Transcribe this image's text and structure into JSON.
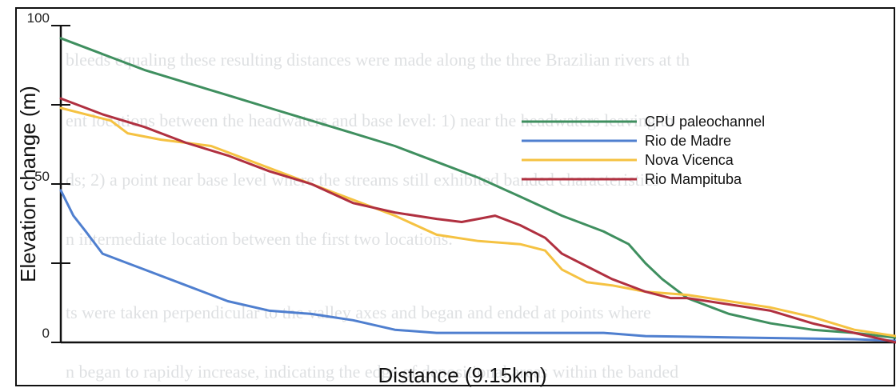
{
  "background_text": [
    "bleeds equaling these resulting distances were made along the three Brazilian rivers at th",
    "ent locations between the headwaters and base level: 1) near the headwaters leaving th",
    "ds; 2) a point near base level where the streams still exhibited banded characteristics",
    "n intermediate location between the first two locations.",
    "ts were taken perpendicular to the valley axes and began and ended at points where",
    "n began to rapidly increase, indicating the edge of depositional areas within the banded"
  ],
  "chart_data": {
    "type": "line",
    "title": "",
    "xlabel": "Distance (9.15km)",
    "ylabel": "Elevation change (m)",
    "xlim": [
      0,
      100
    ],
    "ylim": [
      0,
      100
    ],
    "yticks": [
      {
        "value": 0,
        "label": "0"
      },
      {
        "value": 25,
        "label": ""
      },
      {
        "value": 50,
        "label": "50"
      },
      {
        "value": 75,
        "label": ""
      },
      {
        "value": 100,
        "label": "100"
      }
    ],
    "legend_position": "right",
    "series": [
      {
        "name": "CPU paleochannel",
        "color": "#3f8f5f",
        "x": [
          0,
          5,
          10,
          15,
          20,
          25,
          30,
          35,
          40,
          45,
          50,
          55,
          60,
          62,
          65,
          68,
          70,
          72,
          75,
          80,
          85,
          90,
          95,
          100
        ],
        "y": [
          96,
          91,
          86,
          82,
          78,
          74,
          70,
          66,
          62,
          57,
          52,
          46,
          40,
          38,
          35,
          31,
          25,
          20,
          14,
          9,
          6,
          4,
          3,
          1.5
        ]
      },
      {
        "name": "Rio de Madre",
        "color": "#4f7fcf",
        "x": [
          0,
          1.5,
          3,
          5,
          8,
          10,
          15,
          20,
          25,
          30,
          35,
          40,
          45,
          50,
          55,
          60,
          65,
          70,
          75,
          80,
          85,
          90,
          95,
          100
        ],
        "y": [
          48,
          40,
          35,
          28,
          25,
          23,
          18,
          13,
          10,
          9,
          7,
          4,
          3,
          3,
          3,
          3,
          3,
          2,
          1.8,
          1.6,
          1.4,
          1.2,
          1,
          0.5
        ]
      },
      {
        "name": "Nova Vicenca",
        "color": "#f5c242",
        "x": [
          0,
          3,
          6,
          8,
          10,
          12,
          15,
          18,
          20,
          25,
          30,
          35,
          40,
          45,
          50,
          55,
          58,
          60,
          63,
          66,
          70,
          75,
          80,
          85,
          90,
          95,
          100
        ],
        "y": [
          74,
          72,
          70,
          66,
          65,
          64,
          63,
          62,
          60,
          55,
          50,
          45,
          40,
          34,
          32,
          31,
          29,
          23,
          19,
          18,
          16,
          15,
          13,
          11,
          8,
          4,
          2
        ]
      },
      {
        "name": "Rio Mampituba",
        "color": "#b03040",
        "x": [
          0,
          5,
          10,
          15,
          20,
          25,
          30,
          35,
          40,
          45,
          48,
          50,
          52,
          55,
          58,
          60,
          63,
          66,
          70,
          73,
          75,
          80,
          85,
          90,
          95,
          100
        ],
        "y": [
          77,
          72,
          68,
          63,
          59,
          54,
          50,
          44,
          41,
          39,
          38,
          39,
          40,
          37,
          33,
          28,
          24,
          20,
          16,
          14,
          14,
          12,
          10,
          6,
          3,
          0
        ]
      }
    ]
  }
}
